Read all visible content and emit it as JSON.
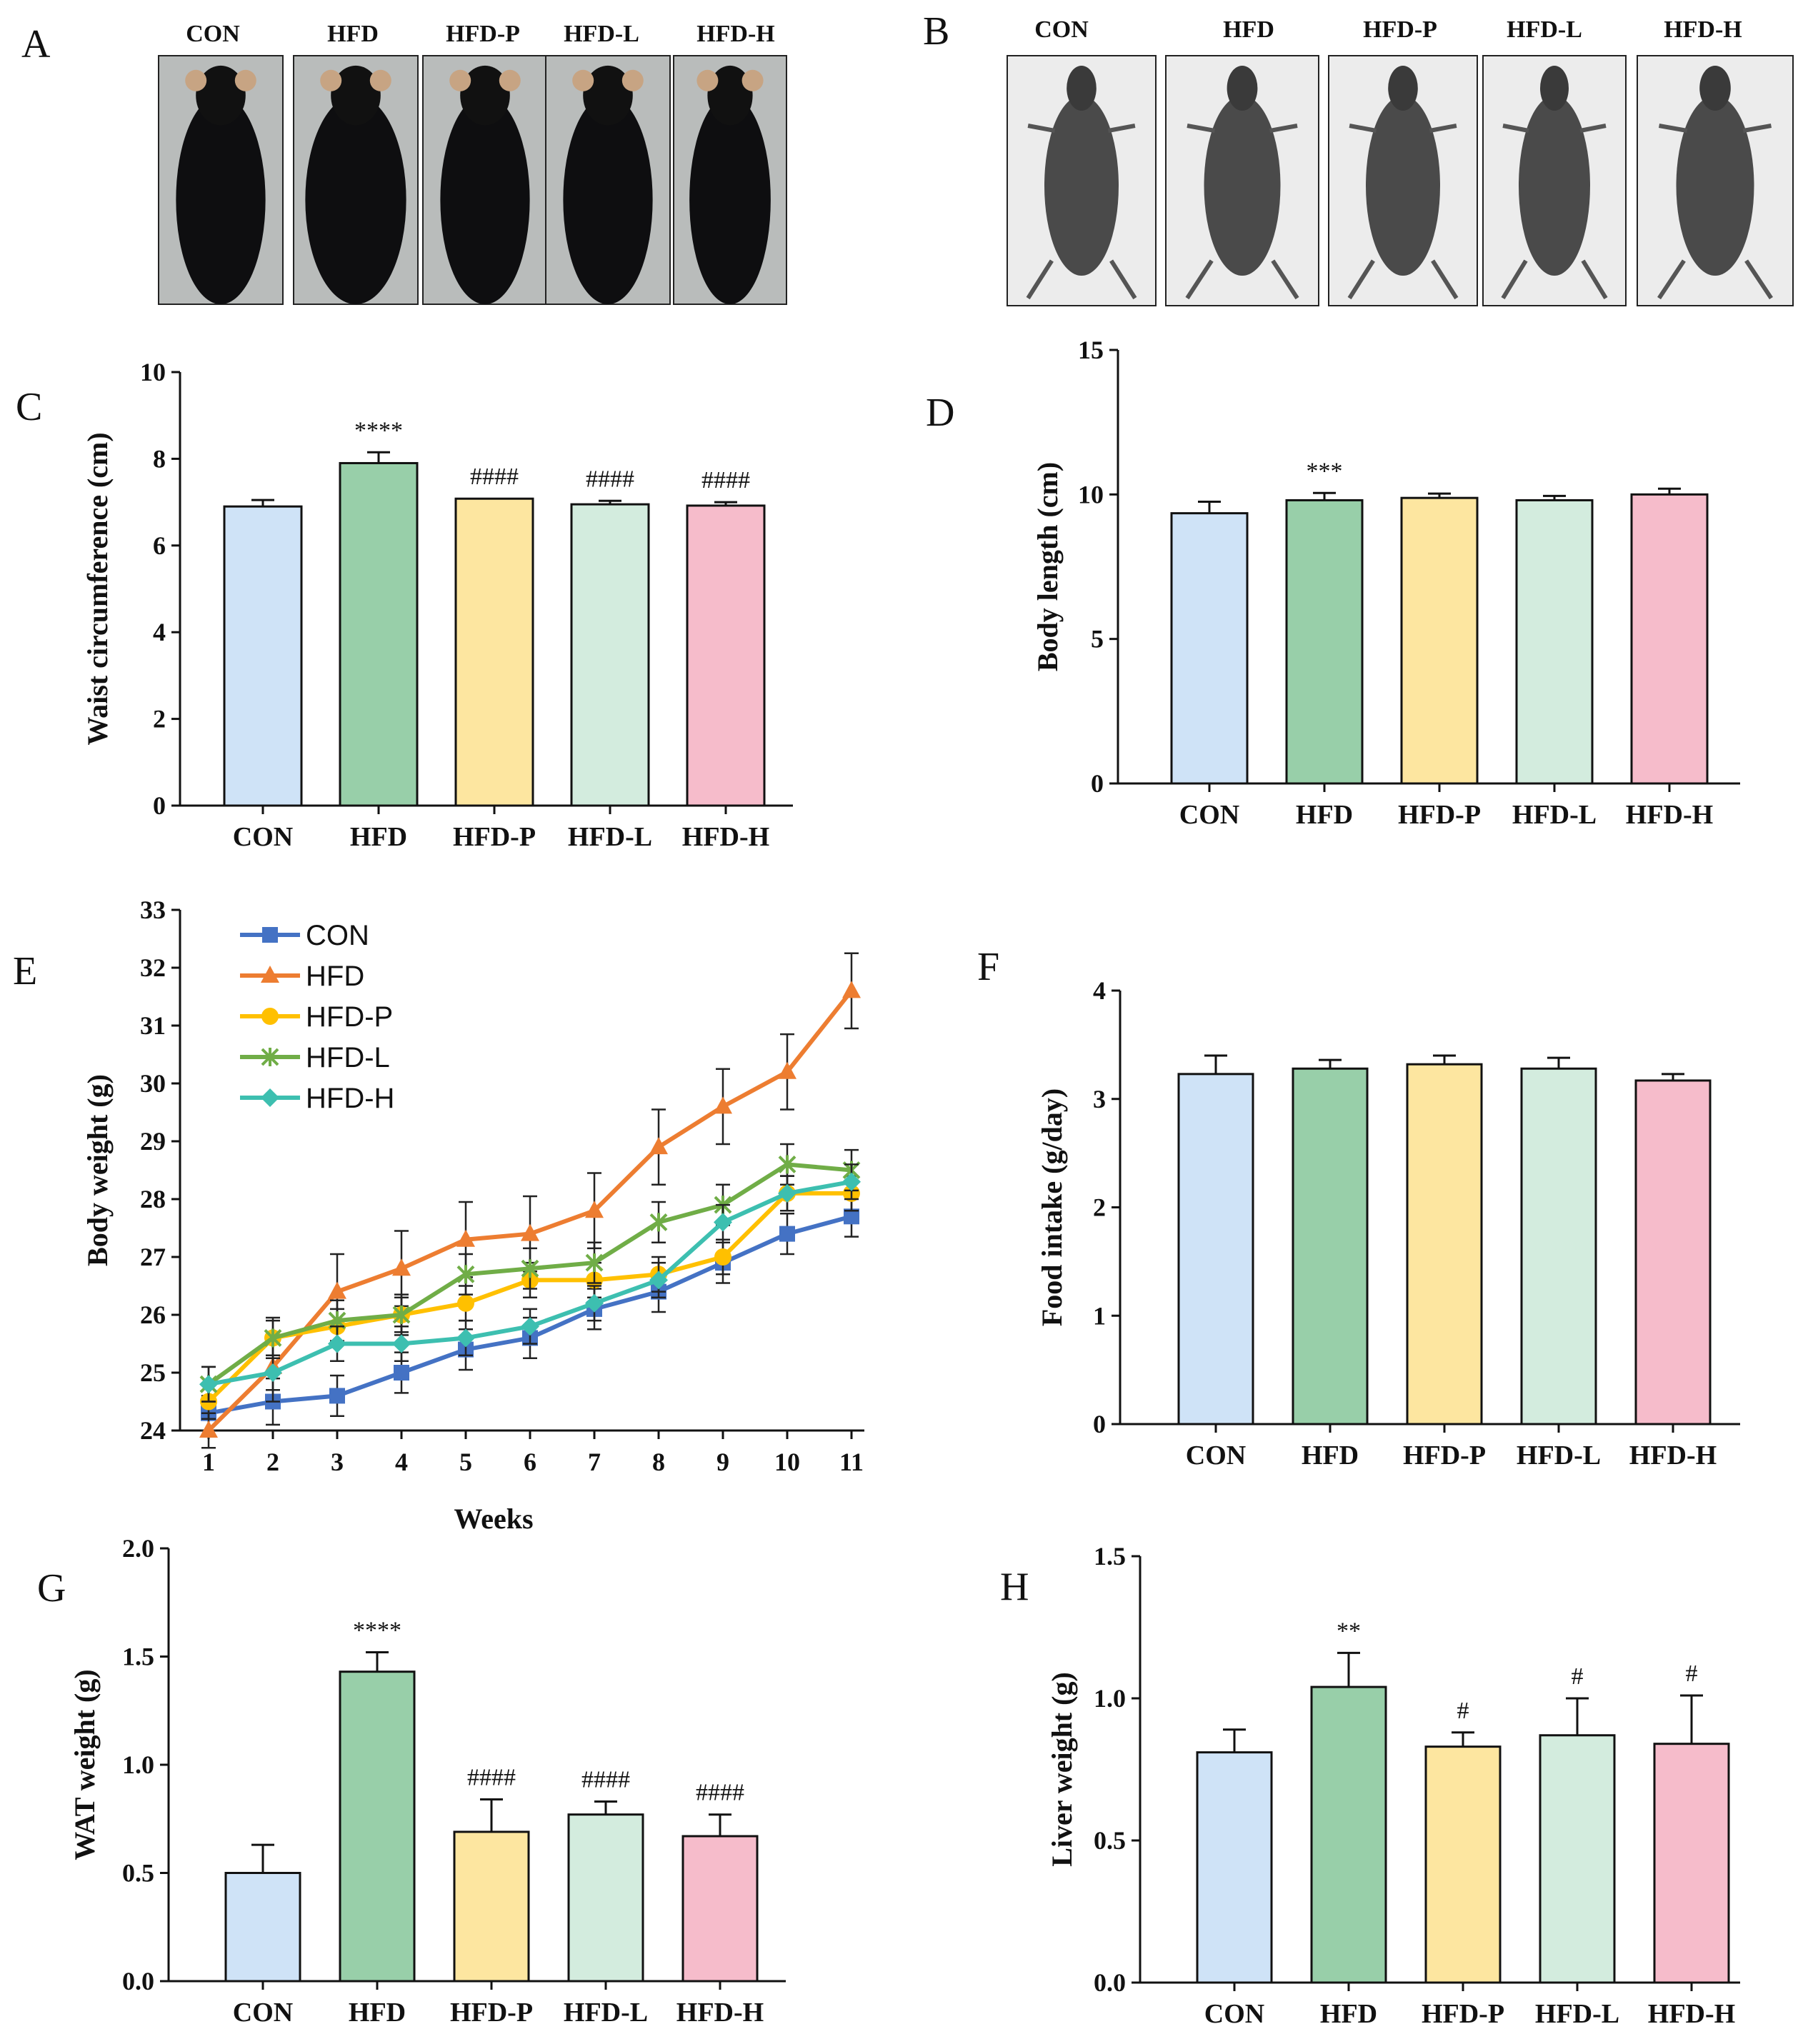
{
  "panels": {
    "A": {
      "label": "A",
      "titles": [
        "CON",
        "HFD",
        "HFD-P",
        "HFD-L",
        "HFD-H"
      ],
      "photo_alt": "Mouse photograph"
    },
    "B": {
      "label": "B",
      "titles": [
        "CON",
        "HFD",
        "HFD-P",
        "HFD-L",
        "HFD-H"
      ],
      "photo_alt": "Mouse X-ray image"
    }
  },
  "colors": {
    "CON": "#cfe3f7",
    "HFD": "#98cfa9",
    "HFD-P": "#fde6a0",
    "HFD-L": "#d3ecde",
    "HFD-H": "#f6bccb",
    "line_CON": "#4472c4",
    "line_HFD": "#ed7d31",
    "line_HFD-P": "#ffc000",
    "line_HFD-L": "#70ad47",
    "line_HFD-H": "#3dbfb0"
  },
  "chart_data": [
    {
      "panel": "C",
      "type": "bar",
      "categories": [
        "CON",
        "HFD",
        "HFD-P",
        "HFD-L",
        "HFD-H"
      ],
      "values": [
        6.9,
        7.9,
        7.08,
        6.95,
        6.92
      ],
      "errors": [
        0.15,
        0.25,
        0.0,
        0.08,
        0.08
      ],
      "significance": [
        "",
        "****",
        "####",
        "####",
        "####"
      ],
      "ylabel": "Waist circumference (cm)",
      "ylim": [
        0,
        10
      ],
      "yticks": [
        "0",
        "2",
        "4",
        "6",
        "8",
        "10"
      ],
      "ytick_values": [
        0,
        2,
        4,
        6,
        8,
        10
      ]
    },
    {
      "panel": "D",
      "type": "bar",
      "categories": [
        "CON",
        "HFD",
        "HFD-P",
        "HFD-L",
        "HFD-H"
      ],
      "values": [
        9.35,
        9.8,
        9.88,
        9.8,
        10.0
      ],
      "errors": [
        0.4,
        0.25,
        0.15,
        0.15,
        0.2
      ],
      "significance": [
        "",
        "***",
        "",
        "",
        ""
      ],
      "ylabel": "Body length (cm)",
      "ylim": [
        0,
        15
      ],
      "yticks": [
        "0",
        "5",
        "10",
        "15"
      ],
      "ytick_values": [
        0,
        5,
        10,
        15
      ]
    },
    {
      "panel": "E",
      "type": "line",
      "x": [
        1,
        2,
        3,
        4,
        5,
        6,
        7,
        8,
        9,
        10,
        11
      ],
      "xticks": [
        "1",
        "2",
        "3",
        "4",
        "5",
        "6",
        "7",
        "8",
        "9",
        "10",
        "11"
      ],
      "xlabel": "Weeks",
      "ylabel": "Body weight (g)",
      "ylim": [
        24,
        33
      ],
      "yticks": [
        "24",
        "25",
        "26",
        "27",
        "28",
        "29",
        "30",
        "31",
        "32",
        "33"
      ],
      "ytick_values": [
        24,
        25,
        26,
        27,
        28,
        29,
        30,
        31,
        32,
        33
      ],
      "series": [
        {
          "name": "CON",
          "values": [
            24.3,
            24.5,
            24.6,
            25.0,
            25.4,
            25.6,
            26.1,
            26.4,
            26.9,
            27.4,
            27.7
          ],
          "errors": [
            0.3,
            0.4,
            0.35,
            0.35,
            0.35,
            0.35,
            0.35,
            0.35,
            0.35,
            0.35,
            0.35
          ]
        },
        {
          "name": "HFD",
          "values": [
            24.0,
            25.1,
            26.4,
            26.8,
            27.3,
            27.4,
            27.8,
            28.9,
            29.6,
            30.2,
            31.6
          ],
          "errors": [
            0.3,
            0.6,
            0.65,
            0.65,
            0.65,
            0.65,
            0.65,
            0.65,
            0.65,
            0.65,
            0.65
          ]
        },
        {
          "name": "HFD-P",
          "values": [
            24.5,
            25.6,
            25.8,
            26.0,
            26.2,
            26.6,
            26.6,
            26.7,
            27.0,
            28.1,
            28.1
          ],
          "errors": [
            0.3,
            0.3,
            0.3,
            0.3,
            0.3,
            0.3,
            0.3,
            0.3,
            0.3,
            0.3,
            0.3
          ]
        },
        {
          "name": "HFD-L",
          "values": [
            24.8,
            25.6,
            25.9,
            26.0,
            26.7,
            26.8,
            26.9,
            27.6,
            27.9,
            28.6,
            28.5
          ],
          "errors": [
            0.3,
            0.35,
            0.35,
            0.35,
            0.35,
            0.35,
            0.35,
            0.35,
            0.35,
            0.35,
            0.35
          ]
        },
        {
          "name": "HFD-H",
          "values": [
            24.8,
            25.0,
            25.5,
            25.5,
            25.6,
            25.8,
            26.2,
            26.6,
            27.6,
            28.1,
            28.3
          ],
          "errors": [
            0.3,
            0.3,
            0.3,
            0.3,
            0.3,
            0.3,
            0.3,
            0.3,
            0.3,
            0.3,
            0.3
          ]
        }
      ]
    },
    {
      "panel": "F",
      "type": "bar",
      "categories": [
        "CON",
        "HFD",
        "HFD-P",
        "HFD-L",
        "HFD-H"
      ],
      "values": [
        3.23,
        3.28,
        3.32,
        3.28,
        3.17
      ],
      "errors": [
        0.17,
        0.08,
        0.08,
        0.1,
        0.06
      ],
      "significance": [
        "",
        "",
        "",
        "",
        ""
      ],
      "ylabel": "Food intake (g/day)",
      "ylim": [
        0,
        4
      ],
      "yticks": [
        "0",
        "1",
        "2",
        "3",
        "4"
      ],
      "ytick_values": [
        0,
        1,
        2,
        3,
        4
      ]
    },
    {
      "panel": "G",
      "type": "bar",
      "categories": [
        "CON",
        "HFD",
        "HFD-P",
        "HFD-L",
        "HFD-H"
      ],
      "values": [
        0.5,
        1.43,
        0.69,
        0.77,
        0.67
      ],
      "errors": [
        0.13,
        0.09,
        0.15,
        0.06,
        0.1
      ],
      "significance": [
        "",
        "****",
        "####",
        "####",
        "####"
      ],
      "ylabel": "WAT weight (g)",
      "ylim": [
        0,
        2
      ],
      "yticks": [
        "0.0",
        "0.5",
        "1.0",
        "1.5",
        "2.0"
      ],
      "ytick_values": [
        0,
        0.5,
        1.0,
        1.5,
        2.0
      ]
    },
    {
      "panel": "H",
      "type": "bar",
      "categories": [
        "CON",
        "HFD",
        "HFD-P",
        "HFD-L",
        "HFD-H"
      ],
      "values": [
        0.81,
        1.04,
        0.83,
        0.87,
        0.84
      ],
      "errors": [
        0.08,
        0.12,
        0.05,
        0.13,
        0.17
      ],
      "significance": [
        "",
        "**",
        "#",
        "#",
        "#"
      ],
      "ylabel": "Liver weight (g)",
      "ylim": [
        0,
        1.5
      ],
      "yticks": [
        "0.0",
        "0.5",
        "1.0",
        "1.5"
      ],
      "ytick_values": [
        0,
        0.5,
        1.0,
        1.5
      ]
    }
  ],
  "panel_labels": {
    "C": "C",
    "D": "D",
    "E": "E",
    "F": "F",
    "G": "G",
    "H": "H"
  }
}
